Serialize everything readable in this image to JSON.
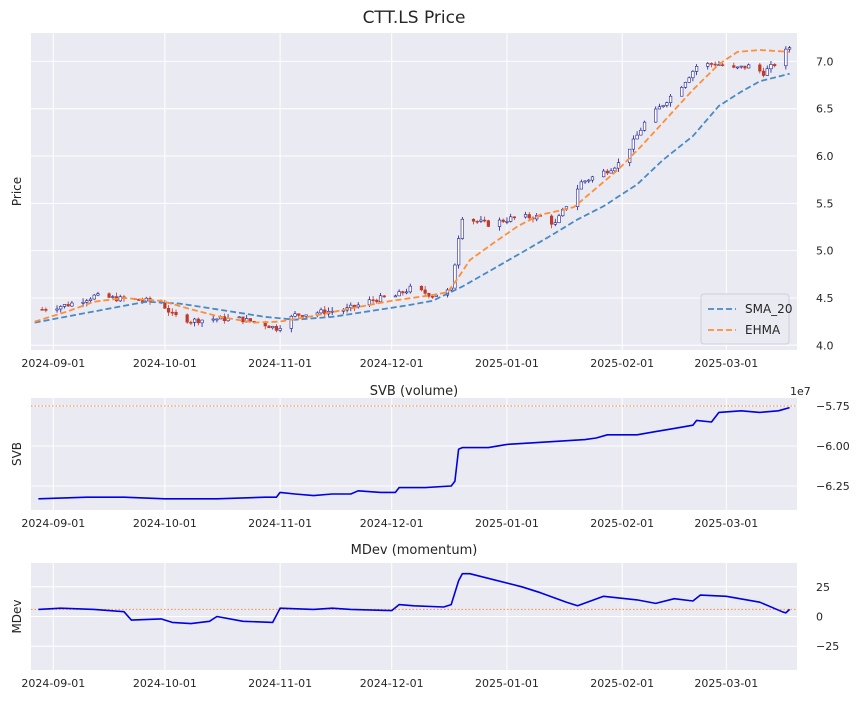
{
  "chart_data": [
    {
      "type": "candlestick",
      "title": "CTT.LS Price",
      "ylabel": "Price",
      "xlabel": "",
      "x_range": [
        "2024-08-26",
        "2025-03-20"
      ],
      "ylim": [
        3.95,
        7.3
      ],
      "yticks": [
        4.0,
        4.5,
        5.0,
        5.5,
        6.0,
        6.5,
        7.0
      ],
      "ytick_labels": [
        "4.0",
        "4.5",
        "5.0",
        "5.5",
        "6.0",
        "6.5",
        "7.0"
      ],
      "xtick_dates": [
        "2024-09-01",
        "2024-10-01",
        "2024-11-01",
        "2024-12-01",
        "2025-01-01",
        "2025-02-01",
        "2025-03-01"
      ],
      "xtick_labels": [
        "2024-09-01",
        "2024-10-01",
        "2024-11-01",
        "2024-12-01",
        "2025-01-01",
        "2025-02-01",
        "2025-03-01"
      ],
      "grid": true,
      "legend_position": "bottom-right",
      "close_anchors": [
        [
          "2024-08-29",
          4.38
        ],
        [
          "2024-09-05",
          4.43
        ],
        [
          "2024-09-12",
          4.52
        ],
        [
          "2024-09-19",
          4.49
        ],
        [
          "2024-09-26",
          4.47
        ],
        [
          "2024-09-30",
          4.45
        ],
        [
          "2024-10-03",
          4.32
        ],
        [
          "2024-10-08",
          4.26
        ],
        [
          "2024-10-14",
          4.28
        ],
        [
          "2024-10-21",
          4.28
        ],
        [
          "2024-10-28",
          4.22
        ],
        [
          "2024-10-31",
          4.18
        ],
        [
          "2024-11-05",
          4.32
        ],
        [
          "2024-11-12",
          4.35
        ],
        [
          "2024-11-19",
          4.38
        ],
        [
          "2024-11-26",
          4.48
        ],
        [
          "2024-12-02",
          4.52
        ],
        [
          "2024-12-06",
          4.6
        ],
        [
          "2024-12-12",
          4.53
        ],
        [
          "2024-12-17",
          4.58
        ],
        [
          "2024-12-19",
          5.15
        ],
        [
          "2024-12-20",
          5.36
        ],
        [
          "2024-12-23",
          5.32
        ],
        [
          "2024-12-27",
          5.28
        ],
        [
          "2025-01-03",
          5.35
        ],
        [
          "2025-01-10",
          5.36
        ],
        [
          "2025-01-14",
          5.28
        ],
        [
          "2025-01-17",
          5.48
        ],
        [
          "2025-01-21",
          5.72
        ],
        [
          "2025-01-28",
          5.85
        ],
        [
          "2025-01-31",
          5.92
        ],
        [
          "2025-02-04",
          6.15
        ],
        [
          "2025-02-07",
          6.35
        ],
        [
          "2025-02-12",
          6.55
        ],
        [
          "2025-02-17",
          6.75
        ],
        [
          "2025-02-21",
          6.95
        ],
        [
          "2025-02-26",
          6.98
        ],
        [
          "2025-03-03",
          6.92
        ],
        [
          "2025-03-07",
          6.95
        ],
        [
          "2025-03-11",
          6.88
        ],
        [
          "2025-03-14",
          6.97
        ],
        [
          "2025-03-18",
          7.15
        ]
      ],
      "series": [
        {
          "name": "SMA_20",
          "color": "#4a8ac4",
          "style": "dashed",
          "points": [
            [
              "2024-08-27",
              4.24
            ],
            [
              "2024-09-15",
              4.38
            ],
            [
              "2024-09-26",
              4.46
            ],
            [
              "2024-10-05",
              4.44
            ],
            [
              "2024-10-15",
              4.38
            ],
            [
              "2024-10-28",
              4.3
            ],
            [
              "2024-11-05",
              4.27
            ],
            [
              "2024-11-15",
              4.3
            ],
            [
              "2024-11-25",
              4.36
            ],
            [
              "2024-12-05",
              4.42
            ],
            [
              "2024-12-12",
              4.47
            ],
            [
              "2024-12-20",
              4.62
            ],
            [
              "2024-12-28",
              4.8
            ],
            [
              "2025-01-05",
              4.98
            ],
            [
              "2025-01-12",
              5.14
            ],
            [
              "2025-01-20",
              5.33
            ],
            [
              "2025-01-27",
              5.47
            ],
            [
              "2025-02-05",
              5.7
            ],
            [
              "2025-02-12",
              5.96
            ],
            [
              "2025-02-20",
              6.21
            ],
            [
              "2025-02-27",
              6.53
            ],
            [
              "2025-03-05",
              6.68
            ],
            [
              "2025-03-10",
              6.79
            ],
            [
              "2025-03-18",
              6.87
            ]
          ]
        },
        {
          "name": "EHMA",
          "color": "#ff8e3a",
          "style": "dashed",
          "points": [
            [
              "2024-08-27",
              4.25
            ],
            [
              "2024-09-05",
              4.36
            ],
            [
              "2024-09-12",
              4.46
            ],
            [
              "2024-09-20",
              4.5
            ],
            [
              "2024-09-30",
              4.47
            ],
            [
              "2024-10-08",
              4.38
            ],
            [
              "2024-10-16",
              4.3
            ],
            [
              "2024-10-25",
              4.24
            ],
            [
              "2024-11-01",
              4.25
            ],
            [
              "2024-11-10",
              4.31
            ],
            [
              "2024-11-20",
              4.39
            ],
            [
              "2024-12-01",
              4.47
            ],
            [
              "2024-12-10",
              4.52
            ],
            [
              "2024-12-16",
              4.56
            ],
            [
              "2024-12-19",
              4.72
            ],
            [
              "2024-12-22",
              4.9
            ],
            [
              "2024-12-28",
              5.07
            ],
            [
              "2025-01-04",
              5.26
            ],
            [
              "2025-01-10",
              5.38
            ],
            [
              "2025-01-16",
              5.43
            ],
            [
              "2025-01-19",
              5.46
            ],
            [
              "2025-01-25",
              5.66
            ],
            [
              "2025-01-31",
              5.86
            ],
            [
              "2025-02-06",
              6.1
            ],
            [
              "2025-02-13",
              6.4
            ],
            [
              "2025-02-20",
              6.7
            ],
            [
              "2025-02-27",
              6.97
            ],
            [
              "2025-03-04",
              7.1
            ],
            [
              "2025-03-10",
              7.12
            ],
            [
              "2025-03-18",
              7.1
            ]
          ]
        }
      ]
    },
    {
      "type": "line",
      "title": "SVB (volume)",
      "ylabel": "SVB",
      "xlabel": "",
      "y_scale_label": "1e7",
      "ylim": [
        -6.4,
        -5.7
      ],
      "yticks": [
        -6.25,
        -6.0,
        -5.75
      ],
      "ytick_labels": [
        "−6.25",
        "−6.00",
        "−5.75"
      ],
      "xtick_dates": [
        "2024-09-01",
        "2024-10-01",
        "2024-11-01",
        "2024-12-01",
        "2025-01-01",
        "2025-02-01",
        "2025-03-01"
      ],
      "xtick_labels": [
        "2024-09-01",
        "2024-10-01",
        "2024-11-01",
        "2024-12-01",
        "2025-01-01",
        "2025-02-01",
        "2025-03-01"
      ],
      "reference_line": -5.75,
      "reference_color": "#ff8e3a",
      "series": [
        {
          "name": "SVB",
          "color": "#0000e6",
          "points": [
            [
              "2024-08-28",
              -6.33
            ],
            [
              "2024-09-10",
              -6.32
            ],
            [
              "2024-09-20",
              -6.32
            ],
            [
              "2024-10-01",
              -6.33
            ],
            [
              "2024-10-15",
              -6.33
            ],
            [
              "2024-10-28",
              -6.32
            ],
            [
              "2024-10-31",
              -6.32
            ],
            [
              "2024-11-01",
              -6.29
            ],
            [
              "2024-11-05",
              -6.3
            ],
            [
              "2024-11-10",
              -6.31
            ],
            [
              "2024-11-15",
              -6.3
            ],
            [
              "2024-11-20",
              -6.3
            ],
            [
              "2024-11-22",
              -6.28
            ],
            [
              "2024-11-28",
              -6.29
            ],
            [
              "2024-12-02",
              -6.29
            ],
            [
              "2024-12-03",
              -6.26
            ],
            [
              "2024-12-10",
              -6.26
            ],
            [
              "2024-12-17",
              -6.25
            ],
            [
              "2024-12-18",
              -6.22
            ],
            [
              "2024-12-19",
              -6.02
            ],
            [
              "2024-12-20",
              -6.01
            ],
            [
              "2024-12-27",
              -6.01
            ],
            [
              "2025-01-01",
              -5.99
            ],
            [
              "2025-01-08",
              -5.98
            ],
            [
              "2025-01-15",
              -5.97
            ],
            [
              "2025-01-22",
              -5.96
            ],
            [
              "2025-01-25",
              -5.95
            ],
            [
              "2025-01-28",
              -5.93
            ],
            [
              "2025-02-05",
              -5.93
            ],
            [
              "2025-02-10",
              -5.91
            ],
            [
              "2025-02-15",
              -5.89
            ],
            [
              "2025-02-20",
              -5.87
            ],
            [
              "2025-02-21",
              -5.84
            ],
            [
              "2025-02-25",
              -5.85
            ],
            [
              "2025-02-27",
              -5.79
            ],
            [
              "2025-03-05",
              -5.78
            ],
            [
              "2025-03-10",
              -5.79
            ],
            [
              "2025-03-15",
              -5.78
            ],
            [
              "2025-03-18",
              -5.76
            ]
          ]
        }
      ]
    },
    {
      "type": "line",
      "title": "MDev (momentum)",
      "ylabel": "MDev",
      "xlabel": "",
      "ylim": [
        -45,
        45
      ],
      "yticks": [
        -25,
        0,
        25
      ],
      "ytick_labels": [
        "−25",
        "0",
        "25"
      ],
      "xtick_dates": [
        "2024-09-01",
        "2024-10-01",
        "2024-11-01",
        "2024-12-01",
        "2025-01-01",
        "2025-02-01",
        "2025-03-01"
      ],
      "xtick_labels": [
        "2024-09-01",
        "2024-10-01",
        "2024-11-01",
        "2024-12-01",
        "2025-01-01",
        "2025-02-01",
        "2025-03-01"
      ],
      "reference_line": 6,
      "reference_color": "#ff8e3a",
      "series": [
        {
          "name": "MDev",
          "color": "#0000e6",
          "points": [
            [
              "2024-08-28",
              6
            ],
            [
              "2024-09-03",
              7
            ],
            [
              "2024-09-12",
              6
            ],
            [
              "2024-09-20",
              4
            ],
            [
              "2024-09-22",
              -3
            ],
            [
              "2024-09-30",
              -2
            ],
            [
              "2024-10-03",
              -5
            ],
            [
              "2024-10-08",
              -6
            ],
            [
              "2024-10-13",
              -4
            ],
            [
              "2024-10-15",
              0
            ],
            [
              "2024-10-22",
              -4
            ],
            [
              "2024-10-30",
              -5
            ],
            [
              "2024-11-01",
              7
            ],
            [
              "2024-11-10",
              6
            ],
            [
              "2024-11-15",
              7
            ],
            [
              "2024-11-20",
              6
            ],
            [
              "2024-12-01",
              5
            ],
            [
              "2024-12-03",
              10
            ],
            [
              "2024-12-07",
              9
            ],
            [
              "2024-12-15",
              8
            ],
            [
              "2024-12-17",
              10
            ],
            [
              "2024-12-19",
              30
            ],
            [
              "2024-12-20",
              36
            ],
            [
              "2024-12-22",
              36
            ],
            [
              "2025-01-05",
              25
            ],
            [
              "2025-01-10",
              20
            ],
            [
              "2025-01-17",
              12
            ],
            [
              "2025-01-20",
              9
            ],
            [
              "2025-01-27",
              17
            ],
            [
              "2025-02-05",
              14
            ],
            [
              "2025-02-10",
              11
            ],
            [
              "2025-02-15",
              15
            ],
            [
              "2025-02-20",
              13
            ],
            [
              "2025-02-22",
              18
            ],
            [
              "2025-03-01",
              17
            ],
            [
              "2025-03-10",
              12
            ],
            [
              "2025-03-16",
              4
            ],
            [
              "2025-03-17",
              3
            ],
            [
              "2025-03-18",
              6
            ]
          ]
        }
      ]
    }
  ]
}
